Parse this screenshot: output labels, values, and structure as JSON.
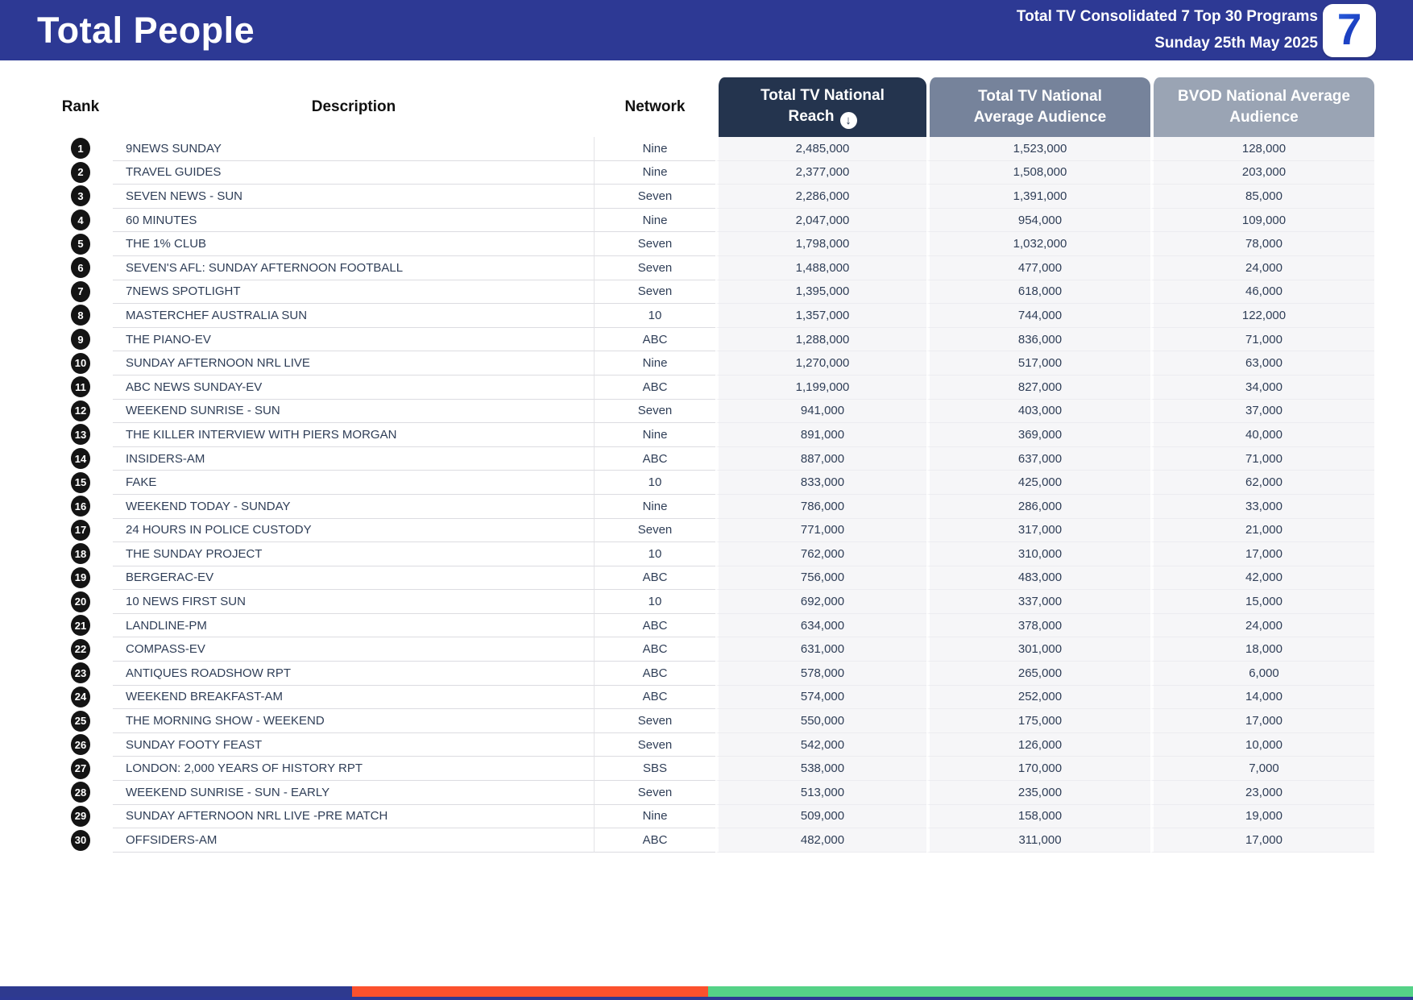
{
  "header": {
    "title": "Total People",
    "report_title": "Total TV Consolidated 7 Top 30 Programs",
    "report_date": "Sunday 25th May 2025",
    "logo_text": "7"
  },
  "table": {
    "columns": {
      "rank": "Rank",
      "description": "Description",
      "network": "Network",
      "reach": "Total TV National Reach",
      "avg_audience": "Total TV National Average Audience",
      "bvod": "BVOD National Average Audience"
    },
    "sort_icon_glyph": "↓",
    "rows": [
      {
        "rank": "1",
        "description": "9NEWS SUNDAY",
        "network": "Nine",
        "reach": "2,485,000",
        "avg_audience": "1,523,000",
        "bvod": "128,000"
      },
      {
        "rank": "2",
        "description": "TRAVEL GUIDES",
        "network": "Nine",
        "reach": "2,377,000",
        "avg_audience": "1,508,000",
        "bvod": "203,000"
      },
      {
        "rank": "3",
        "description": "SEVEN NEWS - SUN",
        "network": "Seven",
        "reach": "2,286,000",
        "avg_audience": "1,391,000",
        "bvod": "85,000"
      },
      {
        "rank": "4",
        "description": "60 MINUTES",
        "network": "Nine",
        "reach": "2,047,000",
        "avg_audience": "954,000",
        "bvod": "109,000"
      },
      {
        "rank": "5",
        "description": "THE 1% CLUB",
        "network": "Seven",
        "reach": "1,798,000",
        "avg_audience": "1,032,000",
        "bvod": "78,000"
      },
      {
        "rank": "6",
        "description": "SEVEN'S AFL: SUNDAY AFTERNOON FOOTBALL",
        "network": "Seven",
        "reach": "1,488,000",
        "avg_audience": "477,000",
        "bvod": "24,000"
      },
      {
        "rank": "7",
        "description": "7NEWS SPOTLIGHT",
        "network": "Seven",
        "reach": "1,395,000",
        "avg_audience": "618,000",
        "bvod": "46,000"
      },
      {
        "rank": "8",
        "description": "MASTERCHEF AUSTRALIA SUN",
        "network": "10",
        "reach": "1,357,000",
        "avg_audience": "744,000",
        "bvod": "122,000"
      },
      {
        "rank": "9",
        "description": "THE PIANO-EV",
        "network": "ABC",
        "reach": "1,288,000",
        "avg_audience": "836,000",
        "bvod": "71,000"
      },
      {
        "rank": "10",
        "description": "SUNDAY AFTERNOON NRL LIVE",
        "network": "Nine",
        "reach": "1,270,000",
        "avg_audience": "517,000",
        "bvod": "63,000"
      },
      {
        "rank": "11",
        "description": "ABC NEWS SUNDAY-EV",
        "network": "ABC",
        "reach": "1,199,000",
        "avg_audience": "827,000",
        "bvod": "34,000"
      },
      {
        "rank": "12",
        "description": "WEEKEND SUNRISE - SUN",
        "network": "Seven",
        "reach": "941,000",
        "avg_audience": "403,000",
        "bvod": "37,000"
      },
      {
        "rank": "13",
        "description": "THE KILLER INTERVIEW WITH PIERS MORGAN",
        "network": "Nine",
        "reach": "891,000",
        "avg_audience": "369,000",
        "bvod": "40,000"
      },
      {
        "rank": "14",
        "description": "INSIDERS-AM",
        "network": "ABC",
        "reach": "887,000",
        "avg_audience": "637,000",
        "bvod": "71,000"
      },
      {
        "rank": "15",
        "description": "FAKE",
        "network": "10",
        "reach": "833,000",
        "avg_audience": "425,000",
        "bvod": "62,000"
      },
      {
        "rank": "16",
        "description": "WEEKEND TODAY - SUNDAY",
        "network": "Nine",
        "reach": "786,000",
        "avg_audience": "286,000",
        "bvod": "33,000"
      },
      {
        "rank": "17",
        "description": "24 HOURS IN POLICE CUSTODY",
        "network": "Seven",
        "reach": "771,000",
        "avg_audience": "317,000",
        "bvod": "21,000"
      },
      {
        "rank": "18",
        "description": "THE SUNDAY PROJECT",
        "network": "10",
        "reach": "762,000",
        "avg_audience": "310,000",
        "bvod": "17,000"
      },
      {
        "rank": "19",
        "description": "BERGERAC-EV",
        "network": "ABC",
        "reach": "756,000",
        "avg_audience": "483,000",
        "bvod": "42,000"
      },
      {
        "rank": "20",
        "description": "10 NEWS FIRST SUN",
        "network": "10",
        "reach": "692,000",
        "avg_audience": "337,000",
        "bvod": "15,000"
      },
      {
        "rank": "21",
        "description": "LANDLINE-PM",
        "network": "ABC",
        "reach": "634,000",
        "avg_audience": "378,000",
        "bvod": "24,000"
      },
      {
        "rank": "22",
        "description": "COMPASS-EV",
        "network": "ABC",
        "reach": "631,000",
        "avg_audience": "301,000",
        "bvod": "18,000"
      },
      {
        "rank": "23",
        "description": "ANTIQUES ROADSHOW RPT",
        "network": "ABC",
        "reach": "578,000",
        "avg_audience": "265,000",
        "bvod": "6,000"
      },
      {
        "rank": "24",
        "description": "WEEKEND BREAKFAST-AM",
        "network": "ABC",
        "reach": "574,000",
        "avg_audience": "252,000",
        "bvod": "14,000"
      },
      {
        "rank": "25",
        "description": "THE MORNING SHOW - WEEKEND",
        "network": "Seven",
        "reach": "550,000",
        "avg_audience": "175,000",
        "bvod": "17,000"
      },
      {
        "rank": "26",
        "description": "SUNDAY FOOTY FEAST",
        "network": "Seven",
        "reach": "542,000",
        "avg_audience": "126,000",
        "bvod": "10,000"
      },
      {
        "rank": "27",
        "description": "LONDON: 2,000 YEARS OF HISTORY RPT",
        "network": "SBS",
        "reach": "538,000",
        "avg_audience": "170,000",
        "bvod": "7,000"
      },
      {
        "rank": "28",
        "description": "WEEKEND SUNRISE - SUN - EARLY",
        "network": "Seven",
        "reach": "513,000",
        "avg_audience": "235,000",
        "bvod": "23,000"
      },
      {
        "rank": "29",
        "description": "SUNDAY AFTERNOON NRL LIVE -PRE MATCH",
        "network": "Nine",
        "reach": "509,000",
        "avg_audience": "158,000",
        "bvod": "19,000"
      },
      {
        "rank": "30",
        "description": "OFFSIDERS-AM",
        "network": "ABC",
        "reach": "482,000",
        "avg_audience": "311,000",
        "bvod": "17,000"
      }
    ]
  },
  "colors": {
    "header_bar": "#2d3994",
    "reach_header_bg": "#24344e",
    "avg_header_bg": "#76839b",
    "bvod_header_bg": "#9aa4b4",
    "numeric_cell_bg": "#f6f6f8",
    "table_text": "#2f3e57",
    "footer_blue": "#2e3a8f",
    "footer_orange": "#fb512d",
    "footer_green": "#55d287"
  }
}
